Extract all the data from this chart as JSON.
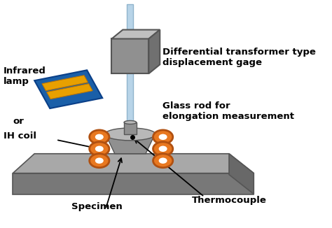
{
  "bg_color": "#ffffff",
  "labels": {
    "transformer": "Differential transformer type\ndisplacement gage",
    "glass_rod": "Glass rod for\nelongation measurement",
    "infrared": "Infrared\nlamp",
    "or": "or",
    "ih_coil": "IH coil",
    "specimen": "Specimen",
    "thermocouple": "Thermocouple"
  },
  "colors": {
    "gray_box_face": "#909090",
    "gray_box_top": "#c0c0c0",
    "gray_box_right": "#707070",
    "gray_box_edge": "#555555",
    "rod_color": "#b8d4e8",
    "rod_edge": "#90b4cc",
    "coil_color": "#e87820",
    "coil_outline": "#b05010",
    "specimen_side": "#909090",
    "specimen_top": "#b8b8b8",
    "base_top": "#a8a8a8",
    "base_front": "#787878",
    "base_right": "#686868",
    "base_edge": "#555555",
    "label_color": "#000000",
    "arrow_color": "#000000"
  },
  "figsize": [
    4.74,
    3.26
  ],
  "dpi": 100
}
